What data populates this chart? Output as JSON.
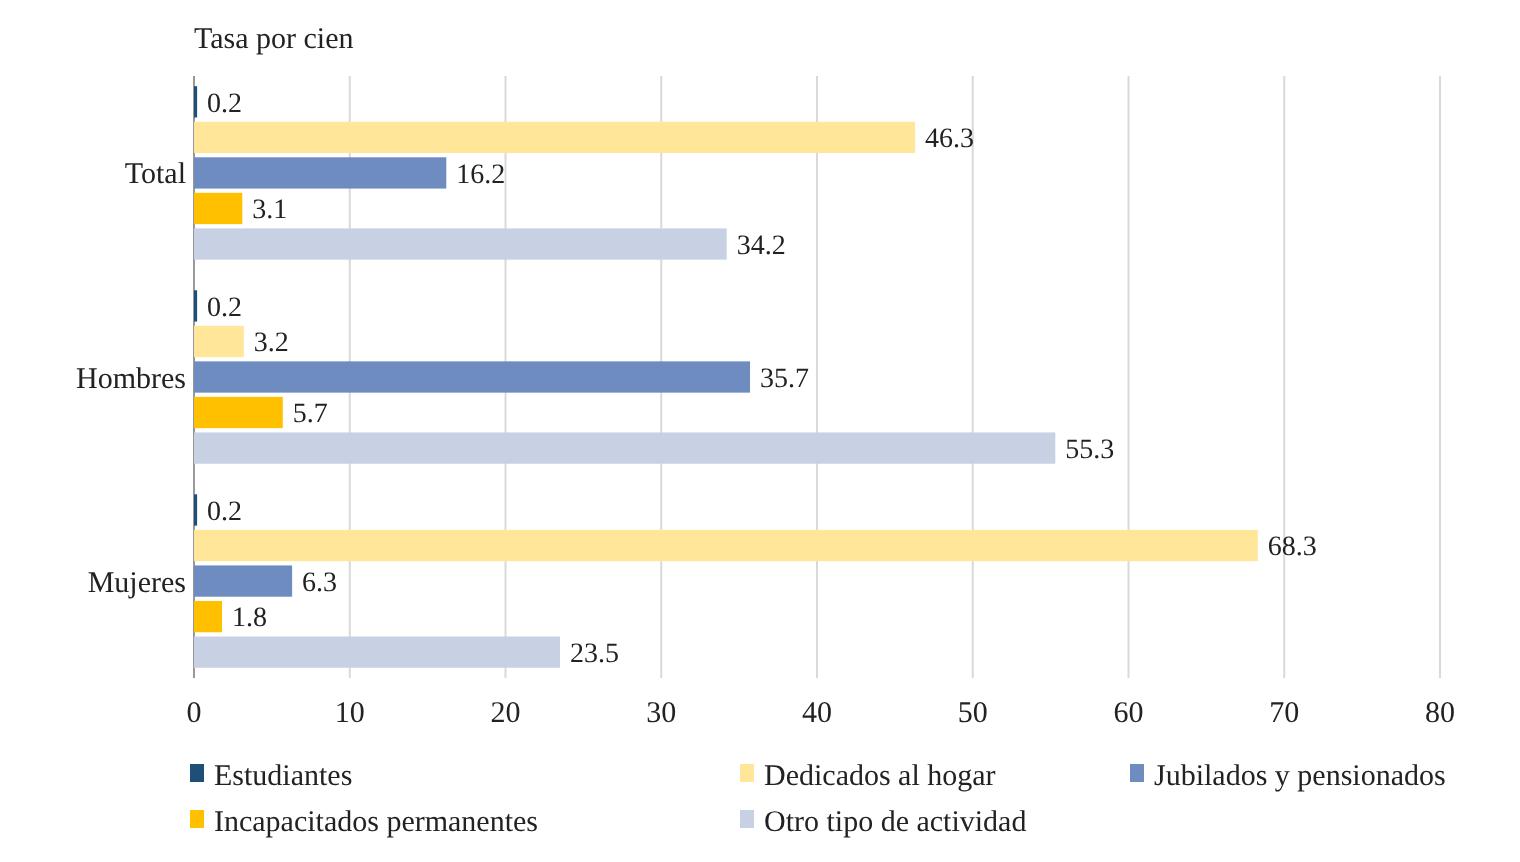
{
  "chart_data": {
    "type": "bar",
    "orientation": "horizontal",
    "title": "Tasa por cien",
    "categories": [
      "Total",
      "Hombres",
      "Mujeres"
    ],
    "series": [
      {
        "name": "Estudiantes",
        "color": "#1f4e79",
        "values": [
          0.2,
          0.2,
          0.2
        ]
      },
      {
        "name": "Dedicados al hogar",
        "color": "#ffe699",
        "values": [
          46.3,
          3.2,
          68.3
        ]
      },
      {
        "name": "Jubilados y pensionados",
        "color": "#6e8cc0",
        "values": [
          16.2,
          35.7,
          6.3
        ]
      },
      {
        "name": "Incapacitados permanentes",
        "color": "#ffc000",
        "values": [
          3.1,
          5.7,
          1.8
        ]
      },
      {
        "name": "Otro tipo de actividad",
        "color": "#c8d1e4",
        "values": [
          34.2,
          55.3,
          23.5
        ]
      }
    ],
    "xlim": [
      0,
      80
    ],
    "xticks": [
      0,
      10,
      20,
      30,
      40,
      50,
      60,
      70,
      80
    ],
    "grid": "x",
    "legend": "bottom",
    "data_labels": true
  }
}
